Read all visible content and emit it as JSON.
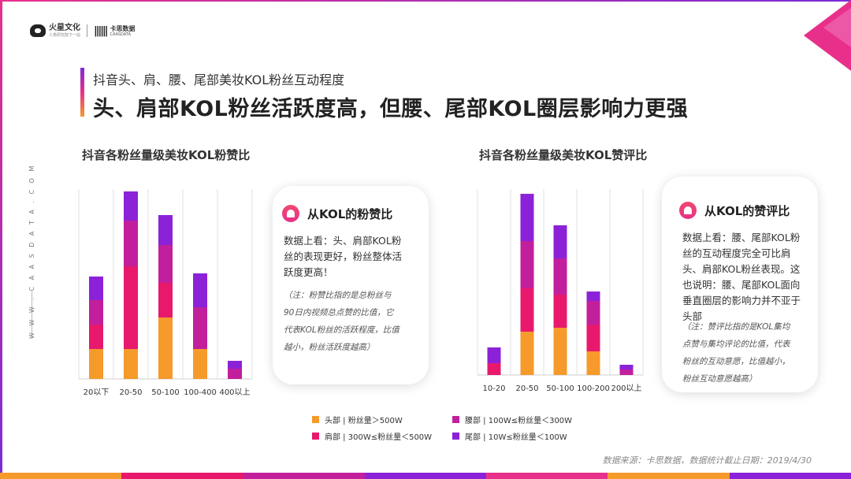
{
  "brand": {
    "logo1_name": "火星文化",
    "logo1_sub": "人类研究院下一站",
    "logo2_bars": "||||||",
    "logo2_name": "卡思数据",
    "logo2_sub": "CAASDATA"
  },
  "side_text": "W W W . C A A S D A T A . C O M",
  "subtitle": "抖音头、肩、腰、尾部美妆KOL粉丝互动程度",
  "headline": "头、肩部KOL粉丝活跃度高，但腰、尾部KOL圈层影响力更强",
  "colors": {
    "head": "#f59a2b",
    "shoulder": "#e8196d",
    "waist": "#c21f9c",
    "tail": "#8b22d8"
  },
  "chart_data": [
    {
      "type": "bar",
      "stacked": true,
      "title": "抖音各粉丝量级美妆KOL粉赞比",
      "categories": [
        "20以下",
        "20-50",
        "50-100",
        "100-400",
        "400以上"
      ],
      "series": [
        {
          "name": "头部 | 粉丝量＞500W",
          "key": "head",
          "values": [
            38,
            38,
            78,
            38,
            0
          ]
        },
        {
          "name": "肩部 | 300W≤粉丝量＜500W",
          "key": "shoulder",
          "values": [
            31,
            105,
            44,
            0,
            0
          ]
        },
        {
          "name": "腰部 | 100W≤粉丝量＜300W",
          "key": "waist",
          "values": [
            31,
            58,
            48,
            53,
            13
          ]
        },
        {
          "name": "尾部 | 10W≤粉丝量＜100W",
          "key": "tail",
          "values": [
            30,
            37,
            38,
            43,
            10
          ]
        }
      ],
      "grid": true,
      "legend": "bottom"
    },
    {
      "type": "bar",
      "stacked": true,
      "title": "抖音各粉丝量级美妆KOL赞评比",
      "categories": [
        "10-20",
        "20-50",
        "50-100",
        "100-200",
        "200以上"
      ],
      "series": [
        {
          "name": "头部 | 粉丝量＞500W",
          "key": "head",
          "values": [
            0,
            55,
            60,
            30,
            0
          ]
        },
        {
          "name": "肩部 | 300W≤粉丝量＜500W",
          "key": "shoulder",
          "values": [
            15,
            55,
            42,
            34,
            0
          ]
        },
        {
          "name": "腰部 | 100W≤粉丝量＜300W",
          "key": "waist",
          "values": [
            0,
            60,
            46,
            30,
            7
          ]
        },
        {
          "name": "尾部 | 10W≤粉丝量＜100W",
          "key": "tail",
          "values": [
            20,
            60,
            42,
            12,
            6
          ]
        }
      ],
      "grid": true,
      "legend": "bottom"
    }
  ],
  "cards": [
    {
      "title": "从KOL的粉赞比",
      "body_lines": [
        "数据上看：头、肩部KOL粉",
        "丝的表现更好，粉丝整体活",
        "跃度更高！"
      ],
      "note_lines": [
        "（注：粉赞比指的是总粉丝与",
        "90日内视频总点赞的比值，它",
        "代表KOL粉丝的活跃程度，比值",
        "越小，粉丝活跃度越高）"
      ]
    },
    {
      "title": "从KOL的赞评比",
      "body_lines": [
        "数据上看：腰、尾部KOL粉",
        "丝的互动程度完全可比肩",
        "头、肩部KOL粉丝表现。这",
        "也说明：腰、尾部KOL面向",
        "垂直圈层的影响力并不亚于",
        "头部"
      ],
      "note_lines": [
        "（注：赞评比指的是KOL集均",
        "点赞与集均评论的比值，代表",
        "粉丝的互动意愿，比值越小，",
        "粉丝互动意愿越高）"
      ]
    }
  ],
  "legend_items": [
    {
      "label": "头部 | 粉丝量＞500W",
      "key": "head"
    },
    {
      "label": "腰部 | 100W≤粉丝量＜300W",
      "key": "waist"
    },
    {
      "label": "肩部 | 300W≤粉丝量＜500W",
      "key": "shoulder"
    },
    {
      "label": "尾部 | 10W≤粉丝量＜100W",
      "key": "tail"
    }
  ],
  "source": "数据来源：卡思数据，数据统计截止日期：2019/4/30"
}
